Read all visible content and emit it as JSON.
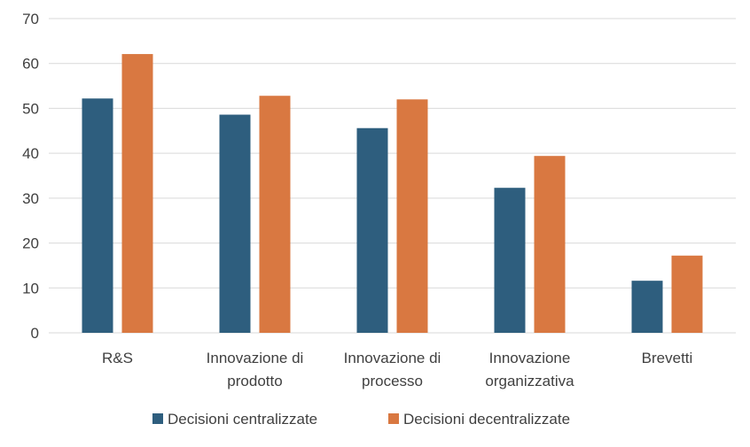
{
  "chart_data": {
    "type": "bar",
    "categories": [
      [
        "R&S"
      ],
      [
        "Innovazione di",
        "prodotto"
      ],
      [
        "Innovazione di",
        "processo"
      ],
      [
        "Innovazione",
        "organizzativa"
      ],
      [
        "Brevetti"
      ]
    ],
    "series": [
      {
        "name": "Decisioni centralizzate",
        "color": "#2e5e7e",
        "values": [
          52.2,
          48.6,
          45.6,
          32.3,
          11.6
        ]
      },
      {
        "name": "Decisioni decentralizzate",
        "color": "#d97841",
        "values": [
          62.1,
          52.8,
          52.0,
          39.4,
          17.2
        ]
      }
    ],
    "ylim": [
      0,
      70
    ],
    "yticks": [
      0,
      10,
      20,
      30,
      40,
      50,
      60,
      70
    ],
    "grid": true,
    "legend_position": "bottom",
    "gridline_color": "#d9d9d9",
    "text_color": "#404040"
  }
}
